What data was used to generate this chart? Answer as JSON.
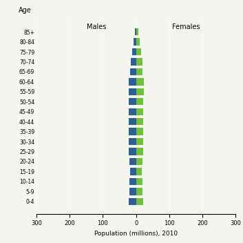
{
  "age_groups": [
    "0-4",
    "5-9",
    "10-14",
    "15-19",
    "20-24",
    "25-29",
    "30-34",
    "35-39",
    "40-44",
    "45-49",
    "50-54",
    "55-59",
    "60-64",
    "65-69",
    "70-74",
    "75-79",
    "80-84",
    "85+"
  ],
  "males": [
    22,
    20,
    20,
    18,
    20,
    22,
    22,
    22,
    22,
    22,
    22,
    22,
    22,
    18,
    16,
    12,
    7,
    4
  ],
  "females": [
    21,
    19,
    19,
    17,
    20,
    22,
    22,
    22,
    22,
    22,
    22,
    24,
    24,
    20,
    20,
    16,
    10,
    7
  ],
  "male_color": "#2e6096",
  "female_color": "#70c040",
  "xlabel": "Population (millions), 2010",
  "ylabel": "Age",
  "xlim": 300,
  "background_color": "#f5f5f0",
  "males_label": "Males",
  "females_label": "Females",
  "tick_values": [
    -300,
    -200,
    -100,
    0,
    100,
    200,
    300
  ],
  "tick_labels": [
    "300",
    "200",
    "100",
    "0",
    "100",
    "200",
    "300"
  ],
  "ytick_fontsize": 5.5,
  "xtick_fontsize": 6.0,
  "xlabel_fontsize": 6.5,
  "label_fontsize": 7.0
}
